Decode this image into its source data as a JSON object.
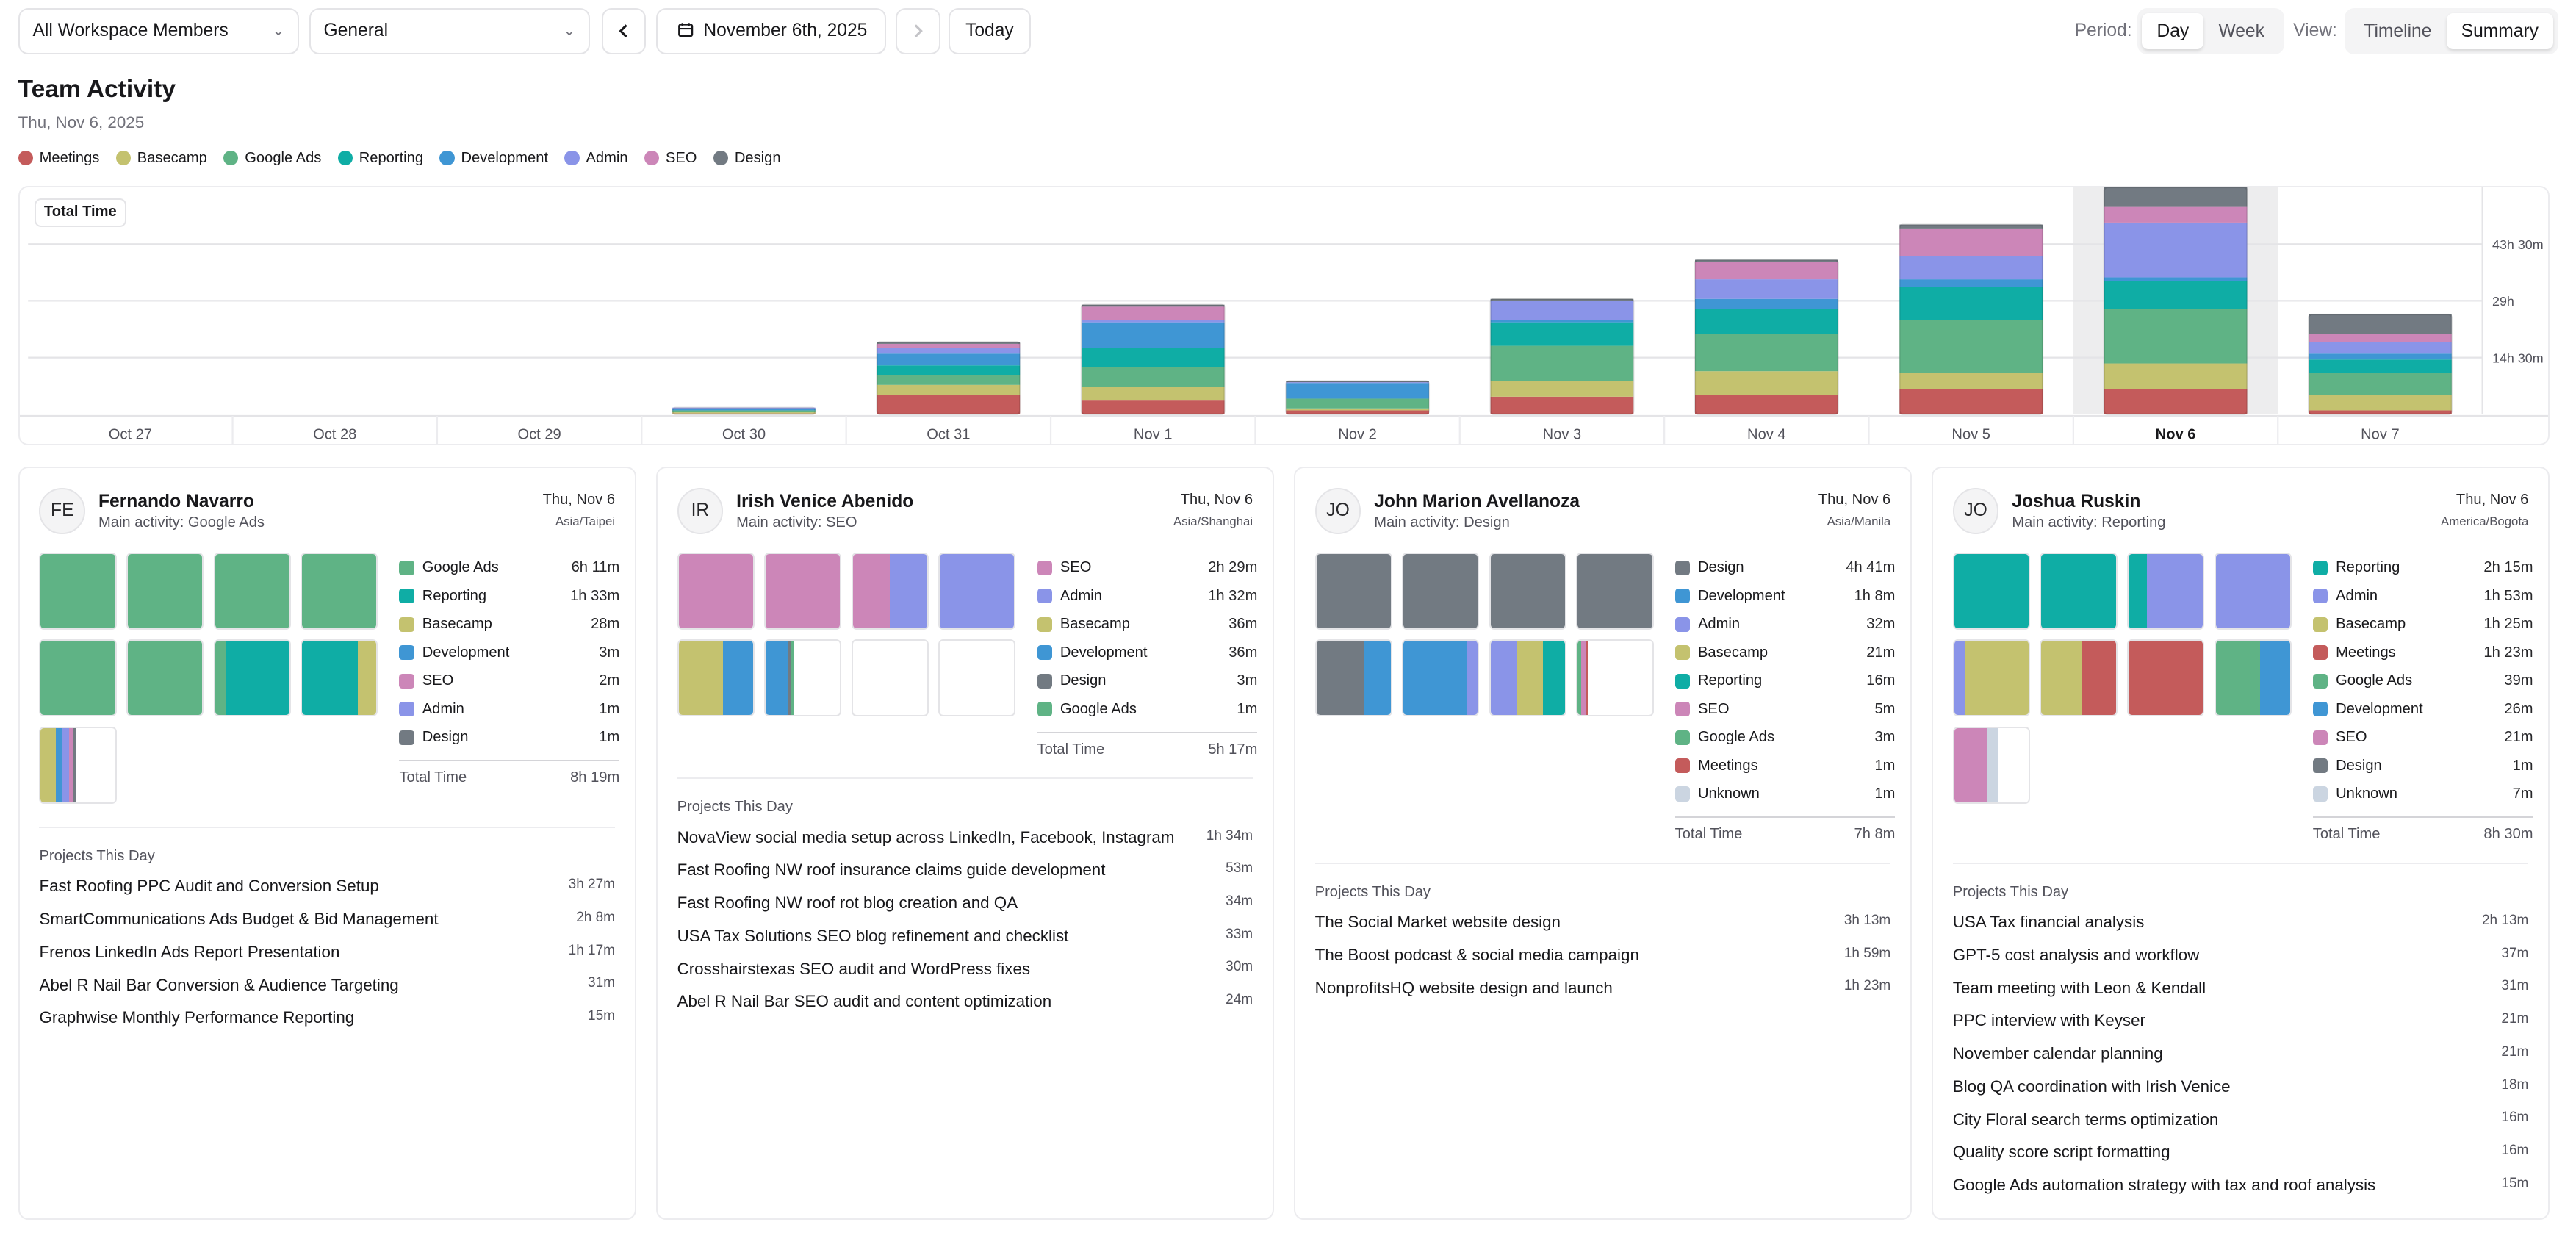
{
  "colors": {
    "Meetings": "#c45b5b",
    "Basecamp": "#c4c26f",
    "Google Ads": "#5fb385",
    "Reporting": "#0fada5",
    "Development": "#3f96d4",
    "Admin": "#8a94e8",
    "SEO": "#cc86b8",
    "Design": "#727a82",
    "Unknown": "#cbd5e1"
  },
  "toolbar": {
    "members_select": "All Workspace Members",
    "project_select": "General",
    "date_label": "November 6th, 2025",
    "prev_icon": "chevron-left",
    "next_icon": "chevron-right",
    "calendar_icon": "calendar",
    "today_label": "Today",
    "period_label": "Period:",
    "period_day": "Day",
    "period_week": "Week",
    "view_label": "View:",
    "view_timeline": "Timeline",
    "view_summary": "Summary"
  },
  "header": {
    "title": "Team Activity",
    "subtitle": "Thu, Nov 6, 2025"
  },
  "legend": [
    "Meetings",
    "Basecamp",
    "Google Ads",
    "Reporting",
    "Development",
    "Admin",
    "SEO",
    "Design"
  ],
  "chart_data": {
    "type": "bar",
    "stacked": true,
    "title": "Total Time",
    "categories": [
      "Oct 27",
      "Oct 28",
      "Oct 29",
      "Oct 30",
      "Oct 31",
      "Nov 1",
      "Nov 2",
      "Nov 3",
      "Nov 4",
      "Nov 5",
      "Nov 6",
      "Nov 7"
    ],
    "highlight": "Nov 6",
    "y_ticks": [
      "14h 30m",
      "29h",
      "43h 30m"
    ],
    "y_tick_values": [
      14.5,
      29,
      43.5
    ],
    "ylim": [
      0,
      58
    ],
    "unit": "hours",
    "series": [
      {
        "name": "Meetings",
        "values": [
          0,
          0,
          0,
          0.2,
          5,
          3.5,
          1,
          4.5,
          5,
          6.5,
          6.5,
          1
        ]
      },
      {
        "name": "Basecamp",
        "values": [
          0,
          0,
          0,
          0.3,
          2.5,
          3.5,
          0.5,
          4,
          6,
          4,
          6.5,
          4
        ]
      },
      {
        "name": "Google Ads",
        "values": [
          0,
          0,
          0,
          0.5,
          2.5,
          5,
          2.5,
          9,
          9.5,
          13.5,
          14,
          5.5
        ]
      },
      {
        "name": "Reporting",
        "values": [
          0,
          0,
          0,
          0,
          2.5,
          5,
          0,
          6,
          6.5,
          8.5,
          7,
          3.5
        ]
      },
      {
        "name": "Development",
        "values": [
          0,
          0,
          0,
          0.5,
          3,
          6.5,
          4,
          0.5,
          2.5,
          2,
          1,
          1.5
        ]
      },
      {
        "name": "Admin",
        "values": [
          0,
          0,
          0,
          0.2,
          1.5,
          0.5,
          0.2,
          5,
          5,
          6,
          14,
          3
        ]
      },
      {
        "name": "SEO",
        "values": [
          0,
          0,
          0,
          0,
          1,
          3.5,
          0,
          0,
          4.5,
          7,
          4,
          2
        ]
      },
      {
        "name": "Design",
        "values": [
          0,
          0,
          0,
          0,
          0.5,
          0.5,
          0.3,
          0.5,
          0.5,
          1,
          5,
          5
        ]
      }
    ]
  },
  "cards": [
    {
      "initials": "FE",
      "name": "Fernando Navarro",
      "main_activity": "Main activity: Google Ads",
      "date": "Thu, Nov 6",
      "tz": "Asia/Taipei",
      "squares": [
        [
          [
            "Google Ads",
            1
          ]
        ],
        [
          [
            "Google Ads",
            1
          ]
        ],
        [
          [
            "Google Ads",
            1
          ]
        ],
        [
          [
            "Google Ads",
            1
          ]
        ],
        [
          [
            "Google Ads",
            1
          ]
        ],
        [
          [
            "Google Ads",
            1
          ]
        ],
        [
          [
            "Google Ads",
            0.15
          ],
          [
            "Reporting",
            0.85
          ]
        ],
        [
          [
            "Reporting",
            0.75
          ],
          [
            "Basecamp",
            0.25
          ]
        ],
        [
          [
            "Basecamp",
            0.2
          ],
          [
            "Development",
            0.08
          ],
          [
            "Admin",
            0.1
          ],
          [
            "SEO",
            0.05
          ],
          [
            "Design",
            0.05
          ]
        ]
      ],
      "categories": [
        {
          "name": "Google Ads",
          "value": "6h 11m"
        },
        {
          "name": "Reporting",
          "value": "1h 33m"
        },
        {
          "name": "Basecamp",
          "value": "28m"
        },
        {
          "name": "Development",
          "value": "3m"
        },
        {
          "name": "SEO",
          "value": "2m"
        },
        {
          "name": "Admin",
          "value": "1m"
        },
        {
          "name": "Design",
          "value": "1m"
        }
      ],
      "total_label": "Total Time",
      "total": "8h 19m",
      "projects_title": "Projects This Day",
      "projects": [
        {
          "name": "Fast Roofing PPC Audit and Conversion Setup",
          "time": "3h 27m"
        },
        {
          "name": "SmartCommunications Ads Budget & Bid Management",
          "time": "2h 8m"
        },
        {
          "name": "Frenos LinkedIn Ads Report Presentation",
          "time": "1h 17m"
        },
        {
          "name": "Abel R Nail Bar Conversion & Audience Targeting",
          "time": "31m"
        },
        {
          "name": "Graphwise Monthly Performance Reporting",
          "time": "15m"
        }
      ]
    },
    {
      "initials": "IR",
      "name": "Irish Venice Abenido",
      "main_activity": "Main activity: SEO",
      "date": "Thu, Nov 6",
      "tz": "Asia/Shanghai",
      "squares": [
        [
          [
            "SEO",
            1
          ]
        ],
        [
          [
            "SEO",
            1
          ]
        ],
        [
          [
            "SEO",
            0.5
          ],
          [
            "Admin",
            0.5
          ]
        ],
        [
          [
            "Admin",
            1
          ]
        ],
        [
          [
            "Basecamp",
            0.6
          ],
          [
            "Development",
            0.4
          ]
        ],
        [
          [
            "Development",
            0.3
          ],
          [
            "Design",
            0.04
          ],
          [
            "Google Ads",
            0.04
          ]
        ],
        [],
        []
      ],
      "categories": [
        {
          "name": "SEO",
          "value": "2h 29m"
        },
        {
          "name": "Admin",
          "value": "1h 32m"
        },
        {
          "name": "Basecamp",
          "value": "36m"
        },
        {
          "name": "Development",
          "value": "36m"
        },
        {
          "name": "Design",
          "value": "3m"
        },
        {
          "name": "Google Ads",
          "value": "1m"
        }
      ],
      "total_label": "Total Time",
      "total": "5h 17m",
      "projects_title": "Projects This Day",
      "projects": [
        {
          "name": "NovaView social media setup across LinkedIn, Facebook, Instagram",
          "time": "1h 34m"
        },
        {
          "name": "Fast Roofing NW roof insurance claims guide development",
          "time": "53m"
        },
        {
          "name": "Fast Roofing NW roof rot blog creation and QA",
          "time": "34m"
        },
        {
          "name": "USA Tax Solutions SEO blog refinement and checklist",
          "time": "33m"
        },
        {
          "name": "Crosshairstexas SEO audit and WordPress fixes",
          "time": "30m"
        },
        {
          "name": "Abel R Nail Bar SEO audit and content optimization",
          "time": "24m"
        }
      ]
    },
    {
      "initials": "JO",
      "name": "John Marion Avellanoza",
      "main_activity": "Main activity: Design",
      "date": "Thu, Nov 6",
      "tz": "Asia/Manila",
      "squares": [
        [
          [
            "Design",
            1
          ]
        ],
        [
          [
            "Design",
            1
          ]
        ],
        [
          [
            "Design",
            1
          ]
        ],
        [
          [
            "Design",
            1
          ]
        ],
        [
          [
            "Design",
            0.65
          ],
          [
            "Development",
            0.35
          ]
        ],
        [
          [
            "Development",
            0.85
          ],
          [
            "Admin",
            0.15
          ]
        ],
        [
          [
            "Admin",
            0.35
          ],
          [
            "Basecamp",
            0.35
          ],
          [
            "Reporting",
            0.3
          ]
        ],
        [
          [
            "Google Ads",
            0.05
          ],
          [
            "SEO",
            0.05
          ],
          [
            "Meetings",
            0.03
          ]
        ]
      ],
      "categories": [
        {
          "name": "Design",
          "value": "4h 41m"
        },
        {
          "name": "Development",
          "value": "1h 8m"
        },
        {
          "name": "Admin",
          "value": "32m"
        },
        {
          "name": "Basecamp",
          "value": "21m"
        },
        {
          "name": "Reporting",
          "value": "16m"
        },
        {
          "name": "SEO",
          "value": "5m"
        },
        {
          "name": "Google Ads",
          "value": "3m"
        },
        {
          "name": "Meetings",
          "value": "1m"
        },
        {
          "name": "Unknown",
          "value": "1m"
        }
      ],
      "total_label": "Total Time",
      "total": "7h 8m",
      "projects_title": "Projects This Day",
      "projects": [
        {
          "name": "The Social Market website design",
          "time": "3h 13m"
        },
        {
          "name": "The Boost podcast & social media campaign",
          "time": "1h 59m"
        },
        {
          "name": "NonprofitsHQ website design and launch",
          "time": "1h 23m"
        }
      ]
    },
    {
      "initials": "JO",
      "name": "Joshua Ruskin",
      "main_activity": "Main activity: Reporting",
      "date": "Thu, Nov 6",
      "tz": "America/Bogota",
      "squares": [
        [
          [
            "Reporting",
            1
          ]
        ],
        [
          [
            "Reporting",
            1
          ]
        ],
        [
          [
            "Reporting",
            0.25
          ],
          [
            "Admin",
            0.75
          ]
        ],
        [
          [
            "Admin",
            1
          ]
        ],
        [
          [
            "Admin",
            0.15
          ],
          [
            "Basecamp",
            0.85
          ]
        ],
        [
          [
            "Basecamp",
            0.55
          ],
          [
            "Meetings",
            0.45
          ]
        ],
        [
          [
            "Meetings",
            1
          ]
        ],
        [
          [
            "Google Ads",
            0.6
          ],
          [
            "Development",
            0.4
          ]
        ],
        [
          [
            "SEO",
            0.45
          ],
          [
            "Unknown",
            0.15
          ]
        ]
      ],
      "categories": [
        {
          "name": "Reporting",
          "value": "2h 15m"
        },
        {
          "name": "Admin",
          "value": "1h 53m"
        },
        {
          "name": "Basecamp",
          "value": "1h 25m"
        },
        {
          "name": "Meetings",
          "value": "1h 23m"
        },
        {
          "name": "Google Ads",
          "value": "39m"
        },
        {
          "name": "Development",
          "value": "26m"
        },
        {
          "name": "SEO",
          "value": "21m"
        },
        {
          "name": "Design",
          "value": "1m"
        },
        {
          "name": "Unknown",
          "value": "7m"
        }
      ],
      "total_label": "Total Time",
      "total": "8h 30m",
      "projects_title": "Projects This Day",
      "projects": [
        {
          "name": "USA Tax financial analysis",
          "time": "2h 13m"
        },
        {
          "name": "GPT-5 cost analysis and workflow",
          "time": "37m"
        },
        {
          "name": "Team meeting with Leon & Kendall",
          "time": "31m"
        },
        {
          "name": "PPC interview with Keyser",
          "time": "21m"
        },
        {
          "name": "November calendar planning",
          "time": "21m"
        },
        {
          "name": "Blog QA coordination with Irish Venice",
          "time": "18m"
        },
        {
          "name": "City Floral search terms optimization",
          "time": "16m"
        },
        {
          "name": "Quality score script formatting",
          "time": "16m"
        },
        {
          "name": "Google Ads automation strategy with tax and roof analysis",
          "time": "15m"
        }
      ]
    }
  ]
}
